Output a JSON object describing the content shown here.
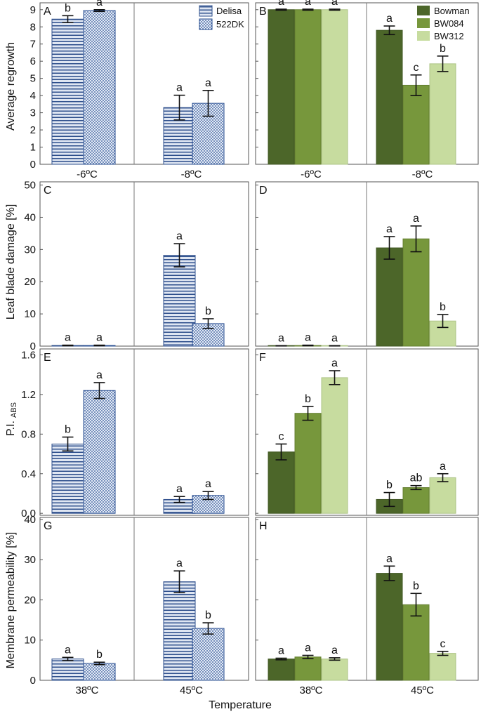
{
  "colors": {
    "delisa_fill": "#dfe6f2",
    "delisa_stripe": "#2e4f8c",
    "dk_fill": "#e4ebf6",
    "dk_dot": "#2a4f92",
    "bowman": "#4c6629",
    "bw084": "#77973c",
    "bw312": "#c7dc9f",
    "axis": "#444444"
  },
  "legend_left": [
    "Delisa",
    "522DK"
  ],
  "legend_right": [
    "Bowman",
    "BW084",
    "BW312"
  ],
  "x_axis_title": "Temperature",
  "rows": [
    {
      "ylabel": "Average regrowth",
      "ylim": [
        0,
        9.4
      ],
      "yticks": [
        "0",
        "1",
        "2",
        "3",
        "4",
        "5",
        "6",
        "7",
        "8",
        "9"
      ],
      "ytick_values": [
        0,
        1,
        2,
        3,
        4,
        5,
        6,
        7,
        8,
        9
      ],
      "categories": [
        "-6ºC",
        "-8ºC"
      ]
    },
    {
      "ylabel": "Leaf blade damage [%]",
      "ylim": [
        0,
        51
      ],
      "yticks": [
        "0",
        "10",
        "20",
        "30",
        "40",
        "50"
      ],
      "ytick_values": [
        0,
        10,
        20,
        30,
        40,
        50
      ],
      "categories": [
        "",
        ""
      ]
    },
    {
      "ylabel": "P.I.",
      "ylabel_sub": "ABS",
      "ylim": [
        -0.02,
        1.66
      ],
      "yticks": [
        "0.0",
        "0.4",
        "0.8",
        "1.2",
        "1.6"
      ],
      "ytick_values": [
        0.0,
        0.4,
        0.8,
        1.2,
        1.6
      ],
      "categories": [
        "",
        ""
      ]
    },
    {
      "ylabel": "Membrane permeability [%]",
      "ylim": [
        0,
        40.5
      ],
      "yticks": [
        "0",
        "10",
        "20",
        "30",
        "40"
      ],
      "ytick_values": [
        0,
        10,
        20,
        30,
        40
      ],
      "categories": [
        "38ºC",
        "45ºC"
      ]
    }
  ],
  "chart_data": [
    {
      "panel": "A",
      "type": "bar",
      "ylabel": "Average regrowth",
      "ylim": [
        0,
        9.4
      ],
      "categories": [
        "-6ºC",
        "-8ºC"
      ],
      "series": [
        {
          "name": "Delisa",
          "values": [
            8.45,
            3.3
          ],
          "errors": [
            0.2,
            0.72
          ],
          "letters": [
            "b",
            "a"
          ]
        },
        {
          "name": "522DK",
          "values": [
            8.95,
            3.55
          ],
          "errors": [
            0.05,
            0.75
          ],
          "letters": [
            "a",
            "a"
          ]
        }
      ]
    },
    {
      "panel": "B",
      "type": "bar",
      "ylabel": "Average regrowth",
      "ylim": [
        0,
        9.4
      ],
      "categories": [
        "-6ºC",
        "-8ºC"
      ],
      "series": [
        {
          "name": "Bowman",
          "values": [
            9.0,
            7.8
          ],
          "errors": [
            0.03,
            0.25
          ],
          "letters": [
            "a",
            "a"
          ]
        },
        {
          "name": "BW084",
          "values": [
            9.0,
            4.6
          ],
          "errors": [
            0.03,
            0.6
          ],
          "letters": [
            "a",
            "c"
          ]
        },
        {
          "name": "BW312",
          "values": [
            9.0,
            5.85
          ],
          "errors": [
            0.03,
            0.45
          ],
          "letters": [
            "a",
            "b"
          ]
        }
      ]
    },
    {
      "panel": "C",
      "type": "bar",
      "ylabel": "Leaf blade damage [%]",
      "ylim": [
        0,
        51
      ],
      "categories": [
        "",
        ""
      ],
      "series": [
        {
          "name": "Delisa",
          "values": [
            0.2,
            28.2
          ],
          "errors": [
            0.1,
            3.6
          ],
          "letters": [
            "a",
            "a"
          ]
        },
        {
          "name": "522DK",
          "values": [
            0.2,
            7.0
          ],
          "errors": [
            0.1,
            1.5
          ],
          "letters": [
            "a",
            "b"
          ]
        }
      ]
    },
    {
      "panel": "D",
      "type": "bar",
      "ylabel": "Leaf blade damage [%]",
      "ylim": [
        0,
        51
      ],
      "categories": [
        "",
        ""
      ],
      "series": [
        {
          "name": "Bowman",
          "values": [
            0.1,
            30.5
          ],
          "errors": [
            0.05,
            3.5
          ],
          "letters": [
            "a",
            "a"
          ]
        },
        {
          "name": "BW084",
          "values": [
            0.2,
            33.3
          ],
          "errors": [
            0.1,
            4.0
          ],
          "letters": [
            "a",
            "a"
          ]
        },
        {
          "name": "BW312",
          "values": [
            0.1,
            7.8
          ],
          "errors": [
            0.05,
            2.0
          ],
          "letters": [
            "a",
            "b"
          ]
        }
      ]
    },
    {
      "panel": "E",
      "type": "bar",
      "ylabel": "P.I. ABS",
      "ylim": [
        -0.02,
        1.66
      ],
      "categories": [
        "",
        ""
      ],
      "series": [
        {
          "name": "Delisa",
          "values": [
            0.7,
            0.14
          ],
          "errors": [
            0.07,
            0.03
          ],
          "letters": [
            "b",
            "a"
          ]
        },
        {
          "name": "522DK",
          "values": [
            1.24,
            0.18
          ],
          "errors": [
            0.08,
            0.04
          ],
          "letters": [
            "a",
            "a"
          ]
        }
      ]
    },
    {
      "panel": "F",
      "type": "bar",
      "ylabel": "P.I. ABS",
      "ylim": [
        -0.02,
        1.66
      ],
      "categories": [
        "",
        ""
      ],
      "series": [
        {
          "name": "Bowman",
          "values": [
            0.62,
            0.14
          ],
          "errors": [
            0.08,
            0.07
          ],
          "letters": [
            "c",
            "b"
          ]
        },
        {
          "name": "BW084",
          "values": [
            1.01,
            0.26
          ],
          "errors": [
            0.07,
            0.02
          ],
          "letters": [
            "b",
            "ab"
          ]
        },
        {
          "name": "BW312",
          "values": [
            1.37,
            0.36
          ],
          "errors": [
            0.07,
            0.04
          ],
          "letters": [
            "a",
            "a"
          ]
        }
      ]
    },
    {
      "panel": "G",
      "type": "bar",
      "ylabel": "Membrane permeability [%]",
      "ylim": [
        0,
        40.5
      ],
      "categories": [
        "38ºC",
        "45ºC"
      ],
      "series": [
        {
          "name": "Delisa",
          "values": [
            5.3,
            24.5
          ],
          "errors": [
            0.4,
            2.7
          ],
          "letters": [
            "a",
            "a"
          ]
        },
        {
          "name": "522DK",
          "values": [
            4.2,
            12.9
          ],
          "errors": [
            0.3,
            1.4
          ],
          "letters": [
            "b",
            "b"
          ]
        }
      ]
    },
    {
      "panel": "H",
      "type": "bar",
      "ylabel": "Membrane permeability [%]",
      "ylim": [
        0,
        40.5
      ],
      "categories": [
        "38ºC",
        "45ºC"
      ],
      "series": [
        {
          "name": "Bowman",
          "values": [
            5.3,
            26.6
          ],
          "errors": [
            0.2,
            1.8
          ],
          "letters": [
            "a",
            "a"
          ]
        },
        {
          "name": "BW084",
          "values": [
            5.8,
            18.8
          ],
          "errors": [
            0.4,
            2.8
          ],
          "letters": [
            "a",
            "b"
          ]
        },
        {
          "name": "BW312",
          "values": [
            5.3,
            6.7
          ],
          "errors": [
            0.3,
            0.5
          ],
          "letters": [
            "a",
            "c"
          ]
        }
      ]
    }
  ]
}
